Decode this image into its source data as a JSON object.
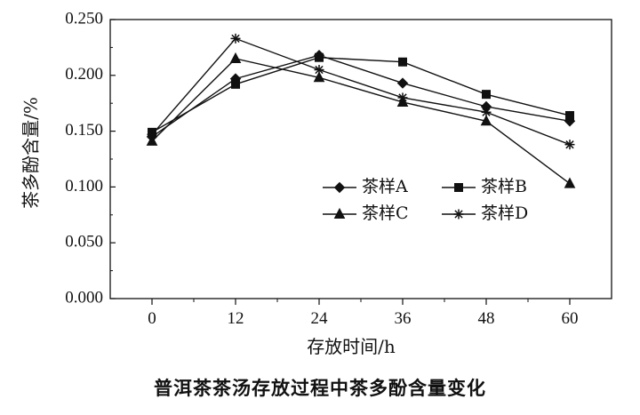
{
  "caption": "普洱茶茶汤存放过程中茶多酚含量变化",
  "chart_data": {
    "type": "line",
    "title": "普洱茶茶汤存放过程中茶多酚含量变化",
    "xlabel": "存放时间/h",
    "ylabel": "茶多酚含量/%",
    "x": [
      0,
      12,
      24,
      36,
      48,
      60
    ],
    "xticks": [
      "0",
      "12",
      "24",
      "36",
      "48",
      "60"
    ],
    "yticks": [
      "0.000",
      "0.050",
      "0.100",
      "0.150",
      "0.200",
      "0.250"
    ],
    "ylim": [
      0,
      0.25
    ],
    "grid": false,
    "legend_position": "center-right",
    "series": [
      {
        "name": "茶样A",
        "marker": "diamond",
        "values": [
          0.145,
          0.197,
          0.218,
          0.193,
          0.172,
          0.159
        ]
      },
      {
        "name": "茶样B",
        "marker": "square",
        "values": [
          0.149,
          0.192,
          0.216,
          0.212,
          0.183,
          0.164
        ]
      },
      {
        "name": "茶样C",
        "marker": "triangle",
        "values": [
          0.141,
          0.215,
          0.198,
          0.176,
          0.159,
          0.103
        ]
      },
      {
        "name": "茶样D",
        "marker": "star",
        "values": [
          0.147,
          0.233,
          0.205,
          0.18,
          0.167,
          0.138
        ]
      }
    ]
  }
}
